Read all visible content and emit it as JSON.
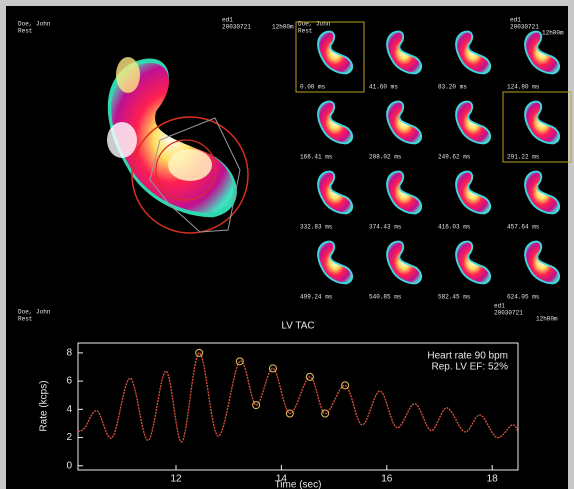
{
  "header": {
    "left_name": "Doe, John",
    "left_study": "Rest",
    "grid_name": "Doe, John",
    "grid_study": "Rest",
    "grid_series": "ed1",
    "grid_date": "20030721",
    "grid_time": "12h00m",
    "plot_name": "Doe, John",
    "plot_study": "Rest",
    "plot_series": "ed1",
    "plot_date": "20030721",
    "plot_time": "12h00m"
  },
  "frames": [
    {
      "label": "0.00 ms",
      "highlighted": true
    },
    {
      "label": "41.60 ms",
      "highlighted": false
    },
    {
      "label": "83.20 ms",
      "highlighted": false
    },
    {
      "label": "124.80 ms",
      "highlighted": false
    },
    {
      "label": "166.41 ms",
      "highlighted": false
    },
    {
      "label": "208.02 ms",
      "highlighted": false
    },
    {
      "label": "249.62 ms",
      "highlighted": false
    },
    {
      "label": "291.22 ms",
      "highlighted": true
    },
    {
      "label": "332.83 ms",
      "highlighted": false
    },
    {
      "label": "374.43 ms",
      "highlighted": false
    },
    {
      "label": "416.03 ms",
      "highlighted": false
    },
    {
      "label": "457.64 ms",
      "highlighted": false
    },
    {
      "label": "499.24 ms",
      "highlighted": false
    },
    {
      "label": "540.85 ms",
      "highlighted": false
    },
    {
      "label": "582.45 ms",
      "highlighted": false
    },
    {
      "label": "624.05 ms",
      "highlighted": false
    }
  ],
  "chart_data": {
    "type": "line",
    "title": "LV TAC",
    "x_label": "Time (sec)",
    "y_label": "Rate (kcps)",
    "annotations": [
      "Heart rate 90 bpm",
      "Rep. LV EF: 52%"
    ],
    "xlim": [
      10.14,
      18.49
    ],
    "ylim": [
      -0.3,
      8.7
    ],
    "xticks": [
      12,
      14,
      16,
      18
    ],
    "yticks": [
      0,
      2,
      4,
      6,
      8
    ],
    "series": [
      {
        "color": "#e0553a",
        "marker": false,
        "x": [
          10.14,
          10.27,
          10.5,
          10.79,
          11.13,
          11.47,
          11.81,
          12.11,
          12.44,
          12.8,
          13.21,
          13.52,
          13.84,
          14.16,
          14.54,
          14.83,
          15.21,
          15.53,
          15.87,
          16.19,
          16.53,
          16.84,
          17.14,
          17.48,
          17.77,
          18.09,
          18.38,
          18.49
        ],
        "values": [
          2.4,
          2.7,
          3.9,
          2.0,
          6.2,
          1.8,
          6.7,
          1.7,
          8.0,
          2.1,
          7.4,
          4.3,
          6.9,
          3.7,
          6.3,
          3.7,
          5.7,
          2.9,
          5.3,
          2.7,
          4.4,
          2.5,
          4.1,
          2.4,
          3.6,
          2.0,
          2.9,
          2.4
        ]
      },
      {
        "color": "#e8c060",
        "marker": true,
        "x": [
          12.44,
          13.21,
          13.52,
          13.84,
          14.16,
          14.54,
          14.83,
          15.21
        ],
        "values": [
          8.0,
          7.4,
          4.3,
          6.9,
          3.7,
          6.3,
          3.7,
          5.7
        ]
      }
    ]
  }
}
